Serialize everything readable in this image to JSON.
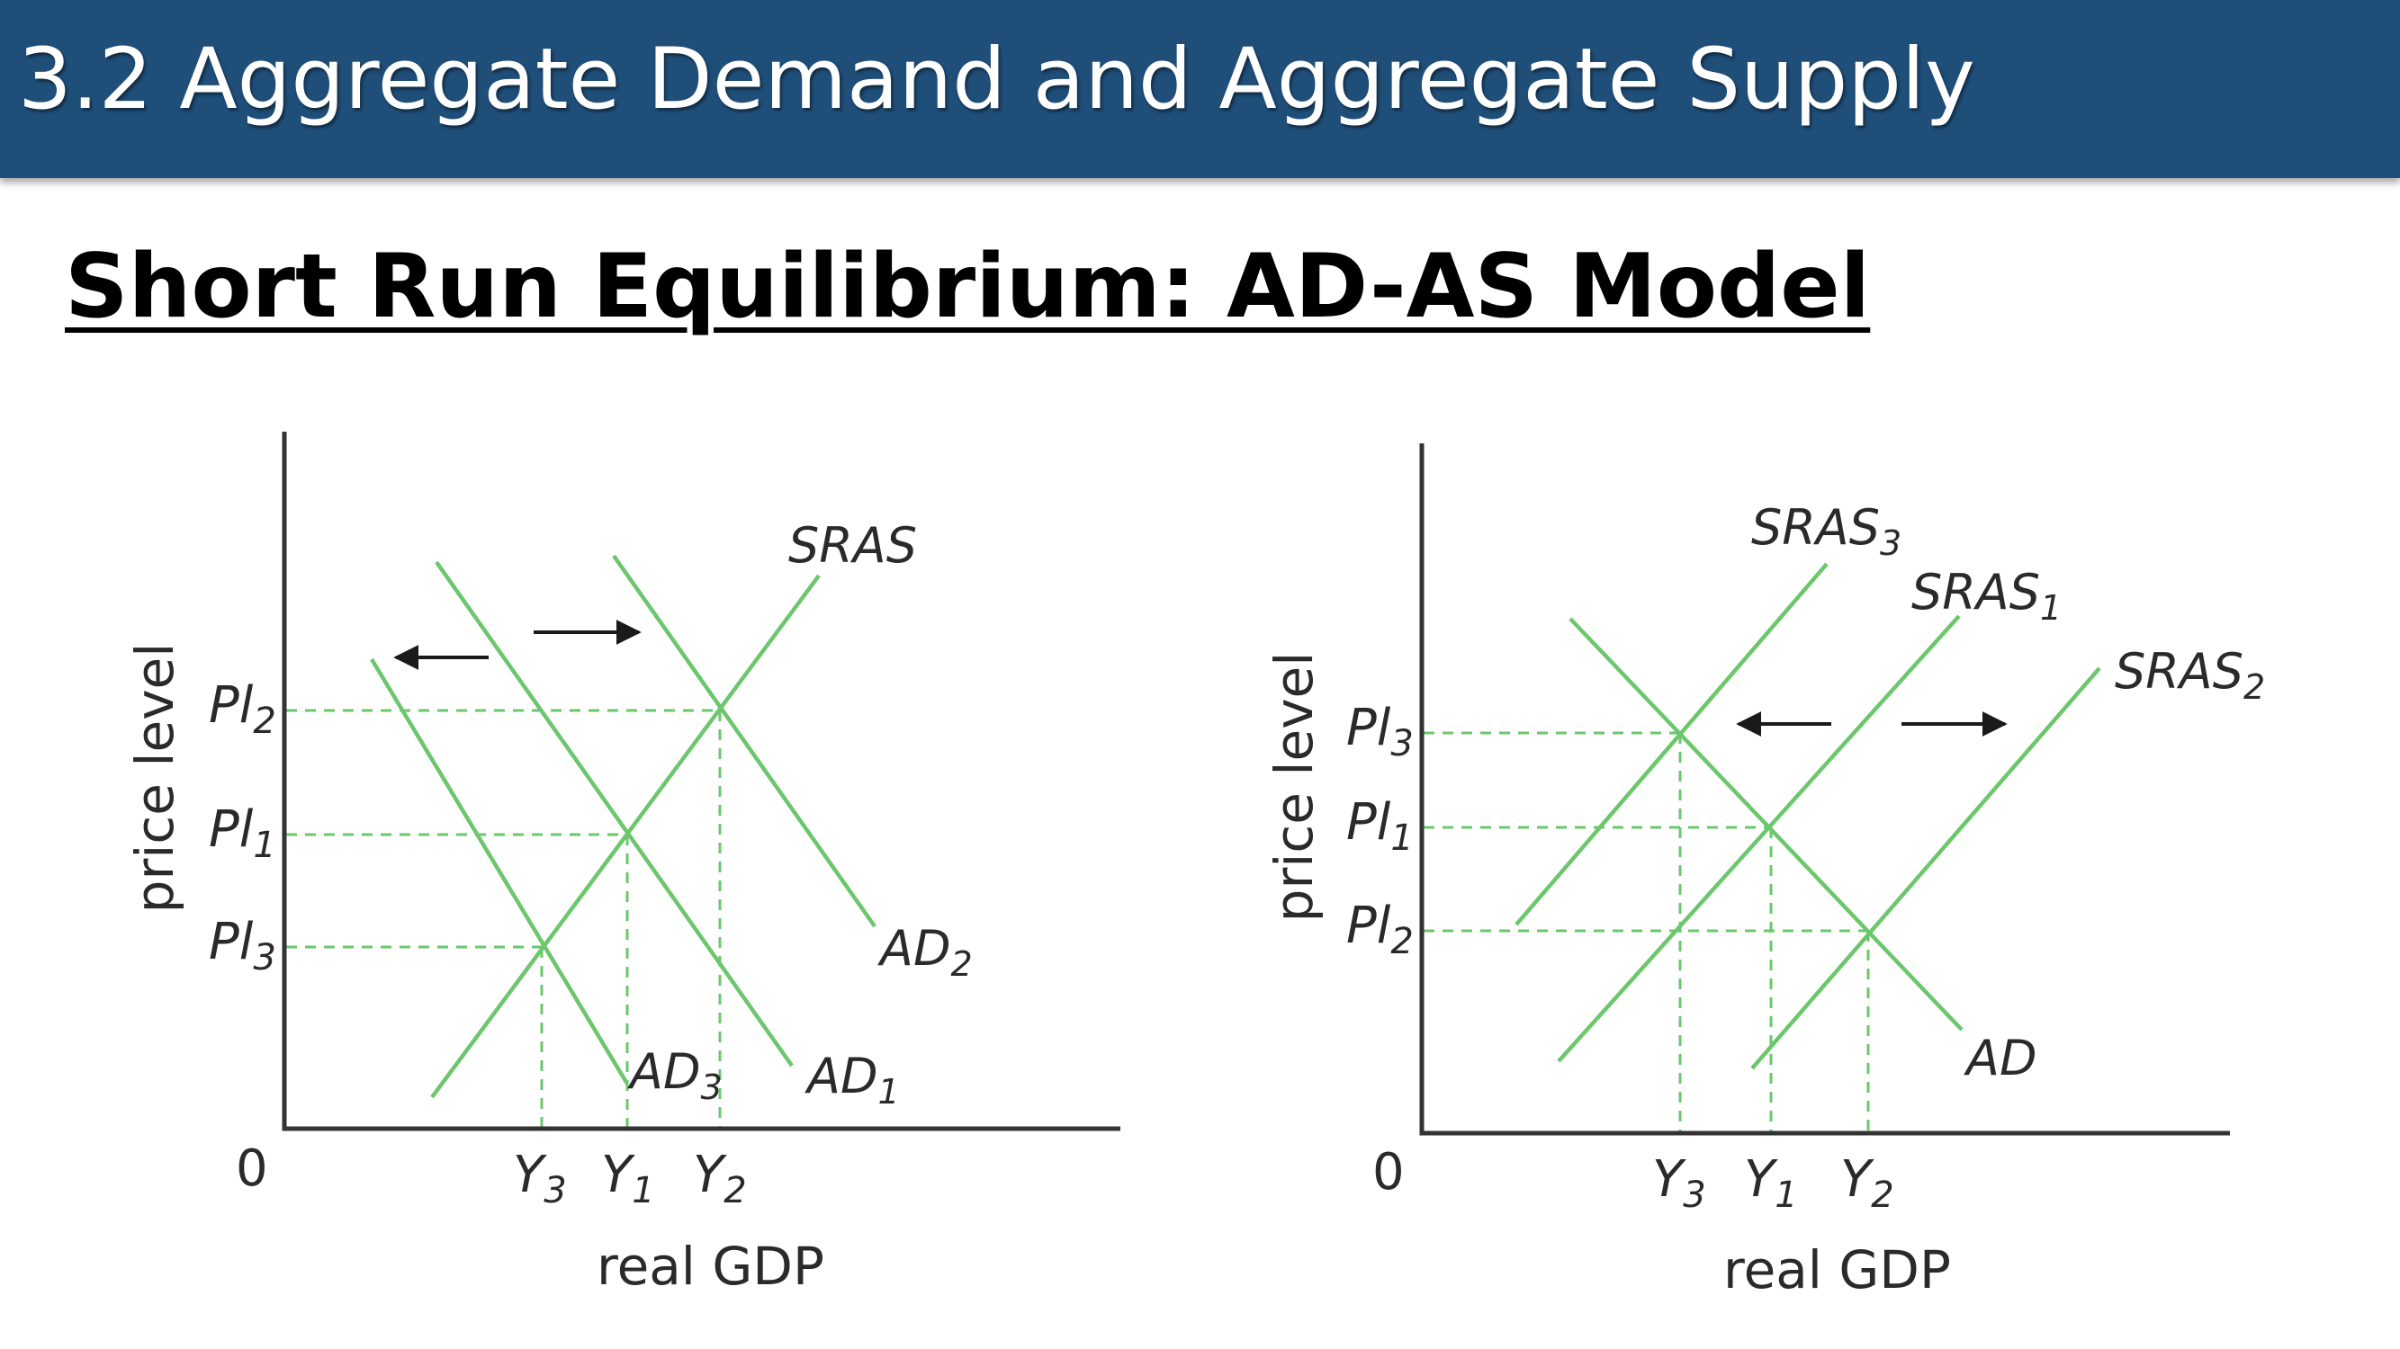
{
  "header": {
    "title": "3.2 Aggregate Demand and Aggregate Supply"
  },
  "heading": "Short Run Equilibrium: AD-AS Model",
  "diagrams": [
    {
      "y_axis_label": "price level",
      "x_axis_label": "real GDP",
      "origin_label": "0",
      "curves": {
        "sras": "SRAS",
        "ad1": "AD",
        "ad1_sub": "1",
        "ad2": "AD",
        "ad2_sub": "2",
        "ad3": "AD",
        "ad3_sub": "3"
      },
      "price_levels": [
        {
          "base": "Pl",
          "sub": "2"
        },
        {
          "base": "Pl",
          "sub": "1"
        },
        {
          "base": "Pl",
          "sub": "3"
        }
      ],
      "outputs": [
        {
          "base": "Y",
          "sub": "3"
        },
        {
          "base": "Y",
          "sub": "1"
        },
        {
          "base": "Y",
          "sub": "2"
        }
      ]
    },
    {
      "y_axis_label": "price level",
      "x_axis_label": "real GDP",
      "origin_label": "0",
      "curves": {
        "sras3": "SRAS",
        "sras3_sub": "3",
        "sras1": "SRAS",
        "sras1_sub": "1",
        "sras2": "SRAS",
        "sras2_sub": "2",
        "ad": "AD"
      },
      "price_levels": [
        {
          "base": "Pl",
          "sub": "3"
        },
        {
          "base": "Pl",
          "sub": "1"
        },
        {
          "base": "Pl",
          "sub": "2"
        }
      ],
      "outputs": [
        {
          "base": "Y",
          "sub": "3"
        },
        {
          "base": "Y",
          "sub": "1"
        },
        {
          "base": "Y",
          "sub": "2"
        }
      ]
    }
  ]
}
